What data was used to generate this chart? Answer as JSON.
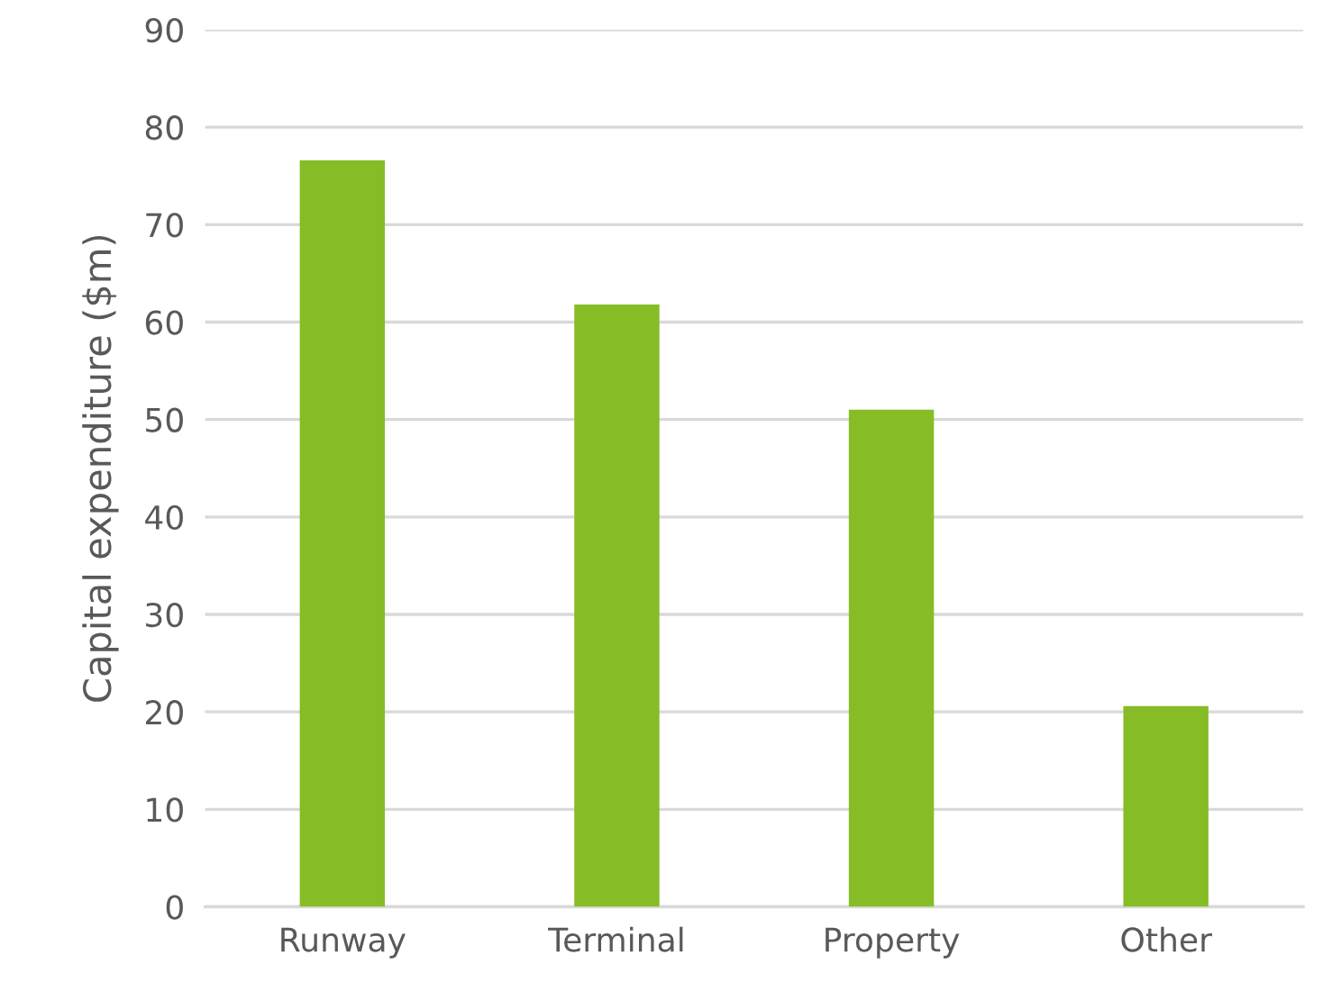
{
  "chart_data": {
    "type": "bar",
    "ylabel": "Capital expenditure ($m)",
    "categories": [
      "Runway",
      "Terminal",
      "Property",
      "Other"
    ],
    "values": [
      76.6,
      61.8,
      51.0,
      20.6
    ],
    "color": "#86bc25",
    "ylim": [
      0,
      90
    ],
    "yticks": [
      0,
      10,
      20,
      30,
      40,
      50,
      60,
      70,
      80,
      90
    ],
    "grid": "y",
    "legend": false
  }
}
